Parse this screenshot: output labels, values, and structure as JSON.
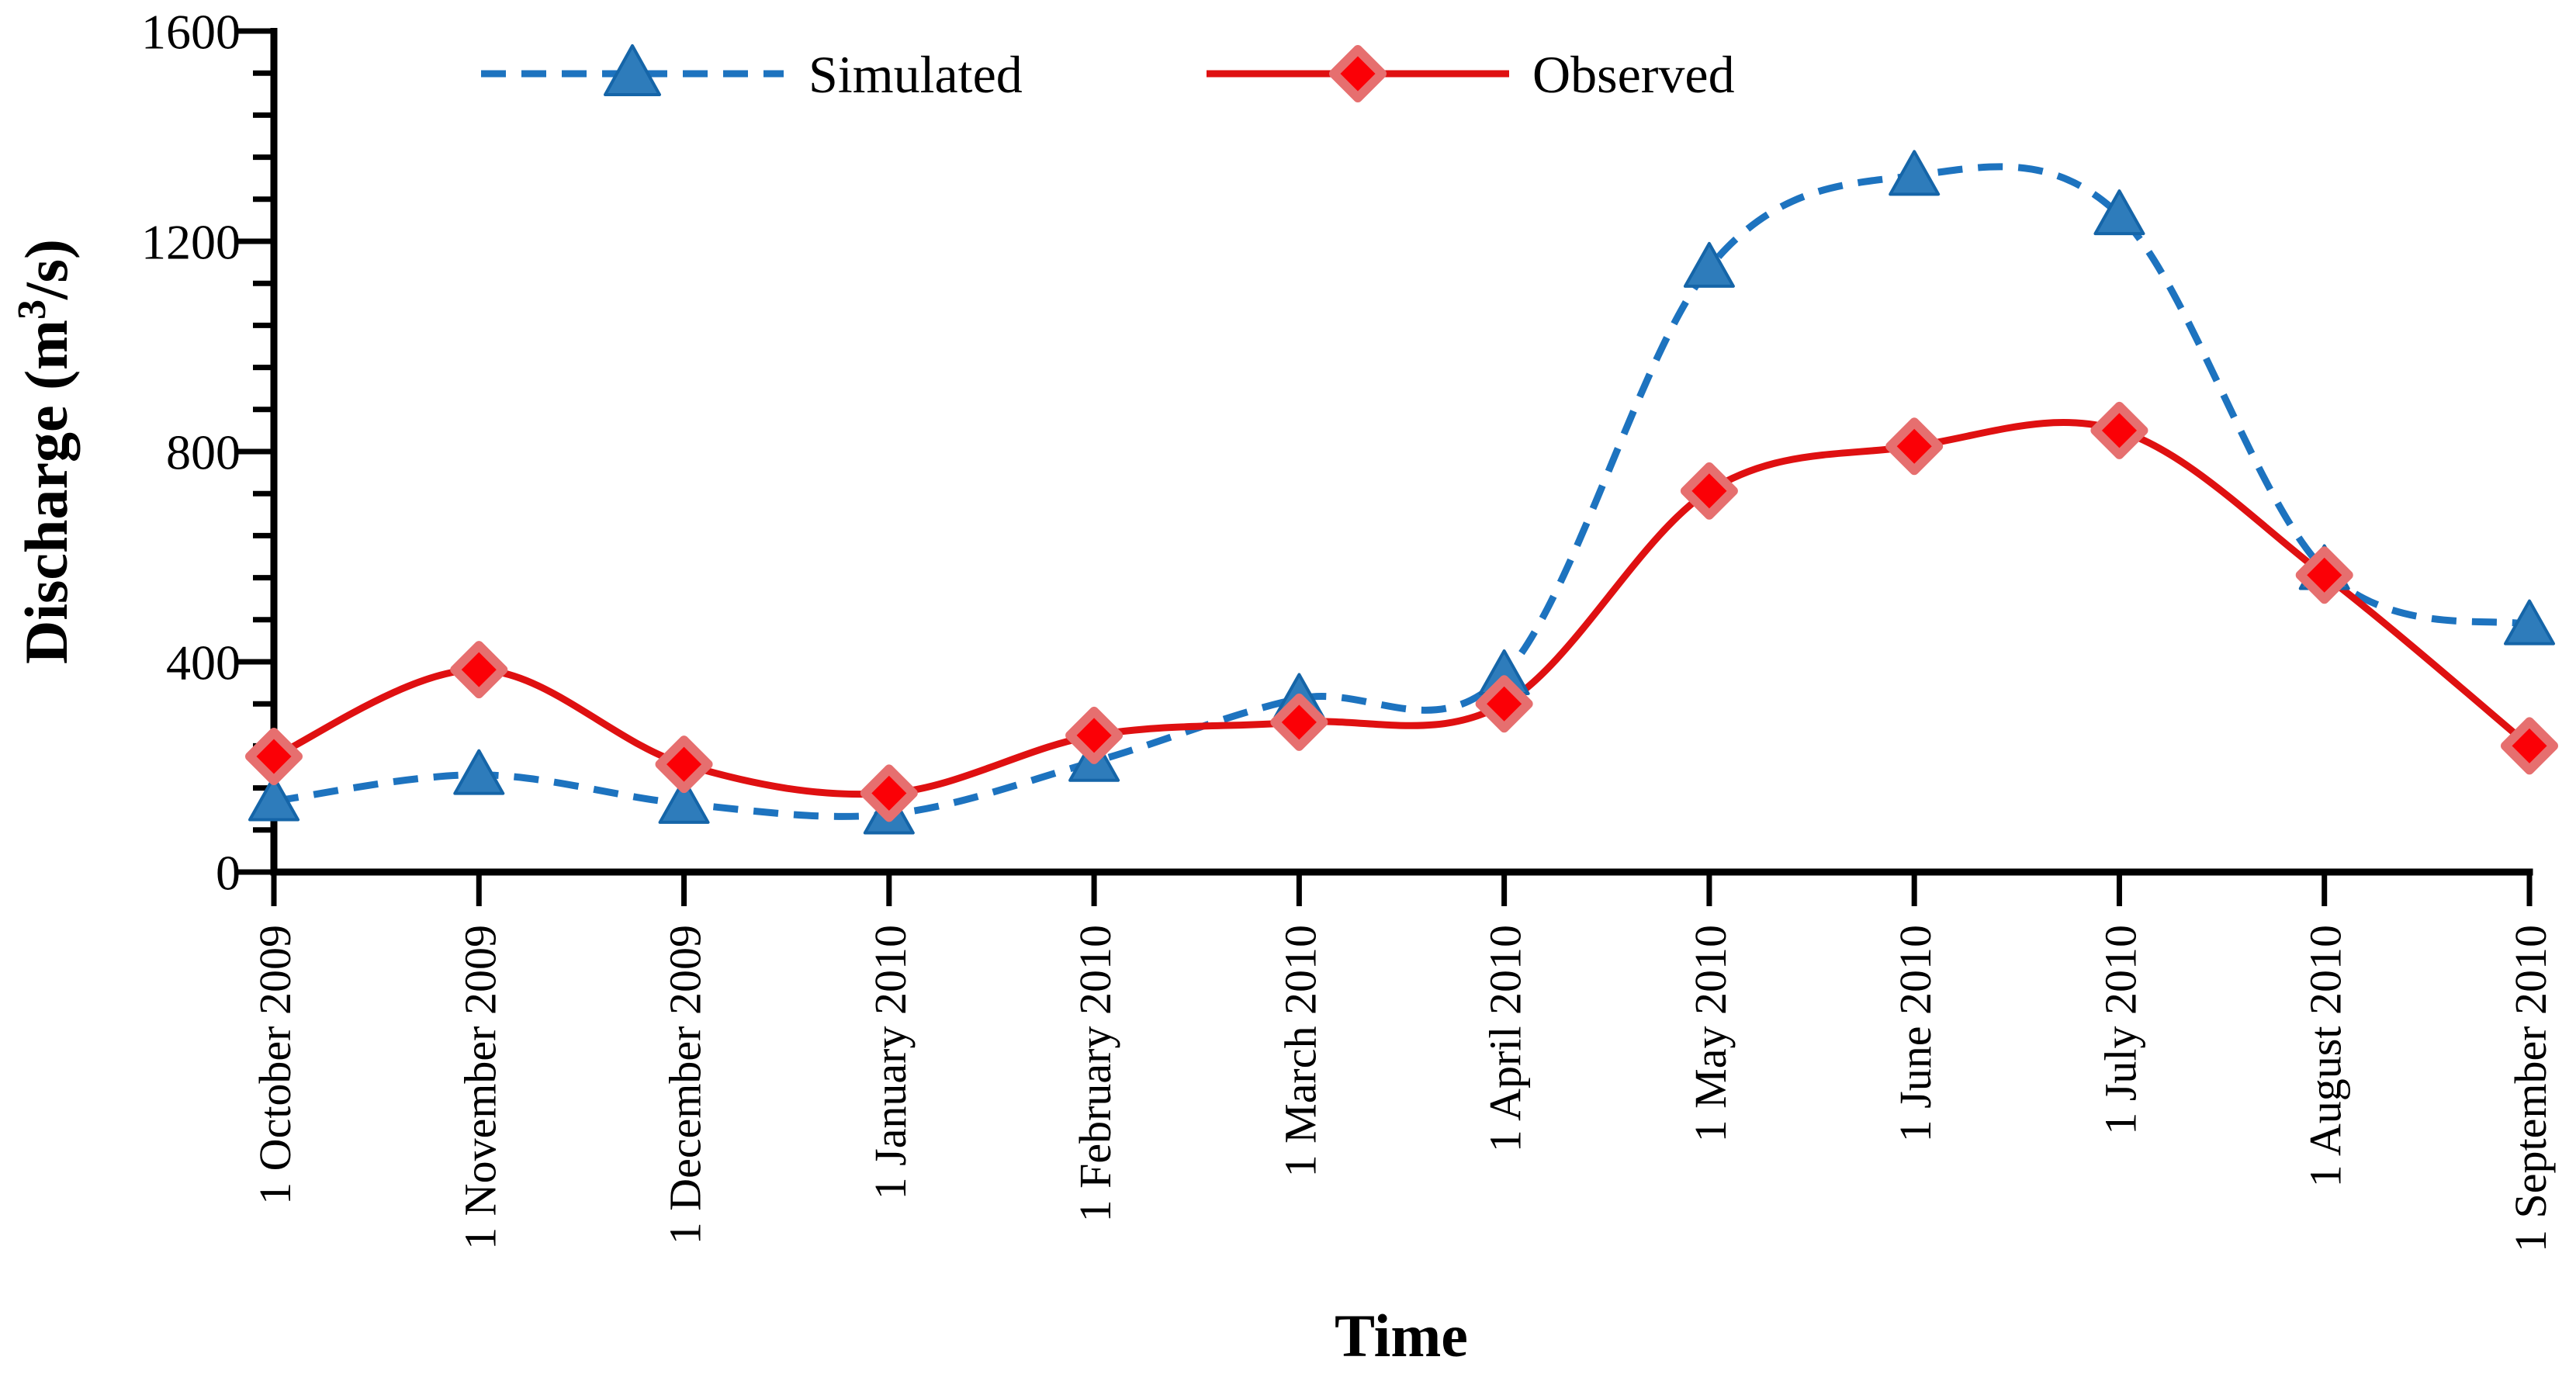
{
  "chart_data": {
    "type": "line",
    "title": "",
    "xlabel": "Time",
    "ylabel": "Discharge (m³/s)",
    "ylabel_pre": "Discharge (m",
    "ylabel_sup": "3",
    "ylabel_post": "/s)",
    "x_categories": [
      "1 October 2009",
      "1 November 2009",
      "1 December 2009",
      "1 January 2010",
      "1 February 2010",
      "1 March 2010",
      "1 April 2010",
      "1 May 2010",
      "1 June 2010",
      "1 July 2010",
      "1 August 2010",
      "1 September 2010"
    ],
    "series": [
      {
        "name": "Simulated",
        "values": [
          135,
          185,
          130,
          110,
          210,
          330,
          375,
          1150,
          1325,
          1250,
          575,
          470
        ],
        "color": "#1D73BF",
        "marker": "triangle",
        "marker_fill": "#2E7CBB",
        "marker_stroke": "#1565A8",
        "line_style": "dashed"
      },
      {
        "name": "Observed",
        "values": [
          220,
          385,
          205,
          150,
          260,
          285,
          320,
          725,
          810,
          840,
          565,
          240
        ],
        "color": "#DF1011",
        "marker": "diamond",
        "marker_fill": "#FB0006",
        "marker_stroke": "#E66F6F",
        "line_style": "solid"
      }
    ],
    "ylim": [
      0,
      1600
    ],
    "y_major_unit": 400,
    "y_minor_unit": 80,
    "y_tick_labels": [
      "0",
      "400",
      "800",
      "1200",
      "1600"
    ],
    "grid": false,
    "smoothed": true,
    "legend_position": "top",
    "axis_color": "#000000"
  }
}
